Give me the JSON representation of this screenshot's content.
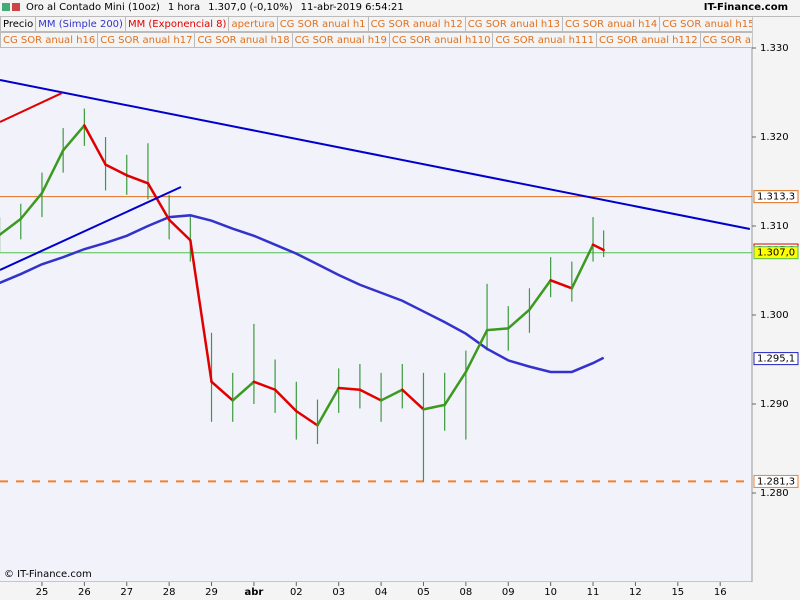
{
  "header": {
    "instrument": "Oro al Contado Mini (10oz)",
    "timeframe": "1 hora",
    "quote": "1.307,0 (-0,10%)",
    "datetime": "11-abr-2019 6:54:21",
    "brand": "IT-Finance.com"
  },
  "footer": "© IT-Finance.com",
  "chart_data": {
    "type": "ohlc-line",
    "indicator_labels": [
      "apertura",
      "CG SOR anual h1",
      "CG SOR anual h12",
      "CG SOR anual h13",
      "CG SOR anual h14",
      "CG SOR anual h15",
      "CG SOR anual h16",
      "CG SOR anual h17",
      "CG SOR anual h18",
      "CG SOR anual h19",
      "CG SOR anual h110",
      "CG SOR anual h111",
      "CG SOR anual h112",
      "CG SOR anual"
    ],
    "x": [
      -1,
      -0.5,
      0,
      0.5,
      1,
      1.5,
      2,
      2.5,
      3,
      3.5,
      4,
      4.5,
      5,
      5.5,
      6,
      6.5,
      7,
      7.5,
      8,
      8.5,
      9,
      9.5,
      10,
      10.5,
      11,
      11.5,
      12,
      12.5,
      13,
      13.25
    ],
    "xlim": [
      -0.99,
      16.75
    ],
    "xticks": [
      {
        "value": 0,
        "label": "25"
      },
      {
        "value": 1,
        "label": "26"
      },
      {
        "value": 2,
        "label": "27"
      },
      {
        "value": 3,
        "label": "28"
      },
      {
        "value": 4,
        "label": "29"
      },
      {
        "value": 5,
        "label": "abr"
      },
      {
        "value": 6,
        "label": "02"
      },
      {
        "value": 7,
        "label": "03"
      },
      {
        "value": 8,
        "label": "04"
      },
      {
        "value": 9,
        "label": "05"
      },
      {
        "value": 10,
        "label": "08"
      },
      {
        "value": 11,
        "label": "09"
      },
      {
        "value": 12,
        "label": "10"
      },
      {
        "value": 13,
        "label": "11"
      },
      {
        "value": 14,
        "label": "12"
      },
      {
        "value": 15,
        "label": "15"
      },
      {
        "value": 16,
        "label": "16"
      }
    ],
    "ylim": [
      1.27,
      1.33
    ],
    "yticks": [
      {
        "value": 1.33,
        "label": "1.330"
      },
      {
        "value": 1.32,
        "label": "1.320"
      },
      {
        "value": 1.31,
        "label": "1.310"
      },
      {
        "value": 1.3,
        "label": "1.300"
      },
      {
        "value": 1.29,
        "label": "1.290"
      },
      {
        "value": 1.28,
        "label": "1.280"
      }
    ],
    "series": [
      {
        "name": "Precio",
        "kind": "bars",
        "color": "#3c9a3c",
        "high": [
          1.311,
          1.3125,
          1.316,
          1.321,
          1.3232,
          1.32,
          1.318,
          1.3193,
          1.3135,
          1.3112,
          1.298,
          1.2935,
          1.299,
          1.295,
          1.2925,
          1.2905,
          1.294,
          1.2945,
          1.2935,
          1.2945,
          1.2935,
          1.2935,
          1.296,
          1.3035,
          1.301,
          1.303,
          1.3065,
          1.306,
          1.311,
          1.3095
        ],
        "low": [
          1.307,
          1.3085,
          1.311,
          1.316,
          1.319,
          1.314,
          1.3135,
          1.313,
          1.3085,
          1.306,
          1.288,
          1.288,
          1.29,
          1.289,
          1.286,
          1.2855,
          1.289,
          1.2895,
          1.288,
          1.2895,
          1.2813,
          1.287,
          1.286,
          1.296,
          1.296,
          1.298,
          1.302,
          1.3015,
          1.306,
          1.3065
        ]
      },
      {
        "name": "MM (Simple 200)",
        "kind": "line",
        "color": "#3333cc",
        "values": [
          1.3036,
          1.3046,
          1.3057,
          1.3065,
          1.3074,
          1.3081,
          1.3089,
          1.31,
          1.311,
          1.3112,
          1.3106,
          1.3097,
          1.3089,
          1.3079,
          1.3069,
          1.3057,
          1.3045,
          1.3034,
          1.3025,
          1.3016,
          1.3004,
          1.2992,
          1.2979,
          1.2962,
          1.2949,
          1.2942,
          1.2936,
          1.2936,
          1.2946,
          1.2952
        ]
      },
      {
        "name": "MM (Exponencial 8)",
        "kind": "updown",
        "color": "#e00000",
        "up_color": "#3c9a20",
        "values": [
          1.309,
          1.3108,
          1.3137,
          1.3185,
          1.3213,
          1.3169,
          1.3157,
          1.3148,
          1.3107,
          1.3084,
          1.2925,
          1.2904,
          1.2925,
          1.2916,
          1.2892,
          1.2876,
          1.2918,
          1.2916,
          1.2904,
          1.2916,
          1.2894,
          1.2899,
          1.2936,
          1.2983,
          1.2985,
          1.3006,
          1.3039,
          1.303,
          1.3079,
          1.3073
        ]
      }
    ],
    "levels": [
      {
        "value": 1.3133,
        "label": "1.313,3",
        "color": "#e07020",
        "style": "solid"
      },
      {
        "value": 1.3073,
        "label": "1.307,3",
        "color": "#e00000",
        "style": "none"
      },
      {
        "value": 1.307,
        "label": "1.307,0",
        "color": "#50c050",
        "style": "solid",
        "box": "#ffff00"
      },
      {
        "value": 1.2951,
        "label": "1.295,1",
        "color": "#2020c0",
        "style": "none"
      },
      {
        "value": 1.2813,
        "label": "1.281,3",
        "color": "#f08030",
        "style": "dashed"
      }
    ],
    "trendlines": [
      {
        "color": "#0000cc",
        "x": [
          -0.99,
          16.7
        ],
        "y": [
          1.3264,
          1.30966
        ]
      },
      {
        "color": "#e00000",
        "x": [
          -0.99,
          0.47
        ],
        "y": [
          1.32169,
          1.32494
        ]
      },
      {
        "color": "#0000cc",
        "x": [
          -0.99,
          3.28
        ],
        "y": [
          1.30506,
          1.31438
        ]
      }
    ]
  }
}
